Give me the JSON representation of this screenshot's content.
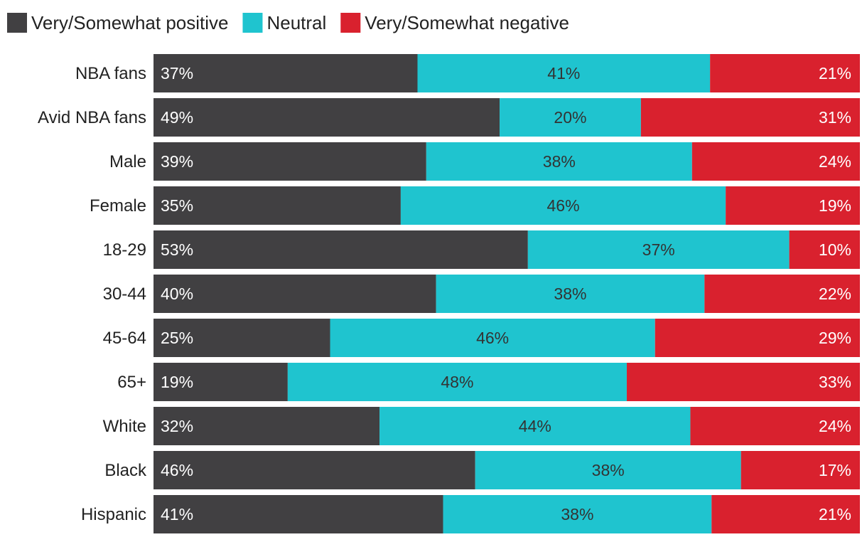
{
  "chart_data": {
    "type": "bar",
    "orientation": "horizontal",
    "stacked": true,
    "categories": [
      "NBA fans",
      "Avid NBA fans",
      "Male",
      "Female",
      "18-29",
      "30-44",
      "45-64",
      "65+",
      "White",
      "Black",
      "Hispanic"
    ],
    "series": [
      {
        "name": "Very/Somewhat positive",
        "color": "#414042",
        "label_color": "#ffffff",
        "label_align": "left",
        "values": [
          37,
          49,
          39,
          35,
          53,
          40,
          25,
          19,
          32,
          46,
          41
        ],
        "labels": [
          "37%",
          "49%",
          "39%",
          "35%",
          "53%",
          "40%",
          "25%",
          "19%",
          "32%",
          "46%",
          "41%"
        ]
      },
      {
        "name": "Neutral",
        "color": "#1fc4cf",
        "label_color": "#333333",
        "label_align": "center",
        "values": [
          41,
          20,
          38,
          46,
          37,
          38,
          46,
          48,
          44,
          38,
          38
        ],
        "labels": [
          "41%",
          "20%",
          "38%",
          "46%",
          "37%",
          "38%",
          "46%",
          "48%",
          "44%",
          "38%",
          "38%"
        ]
      },
      {
        "name": "Very/Somewhat negative",
        "color": "#d9212e",
        "label_color": "#ffffff",
        "label_align": "right",
        "values": [
          21,
          31,
          24,
          19,
          10,
          22,
          29,
          33,
          24,
          17,
          21
        ],
        "labels": [
          "21%",
          "31%",
          "24%",
          "19%",
          "10%",
          "22%",
          "29%",
          "33%",
          "24%",
          "17%",
          "21%"
        ]
      }
    ],
    "legend_position": "top-left",
    "grid": false,
    "xlim": [
      0,
      100
    ],
    "title": "",
    "xlabel": "",
    "ylabel": ""
  }
}
